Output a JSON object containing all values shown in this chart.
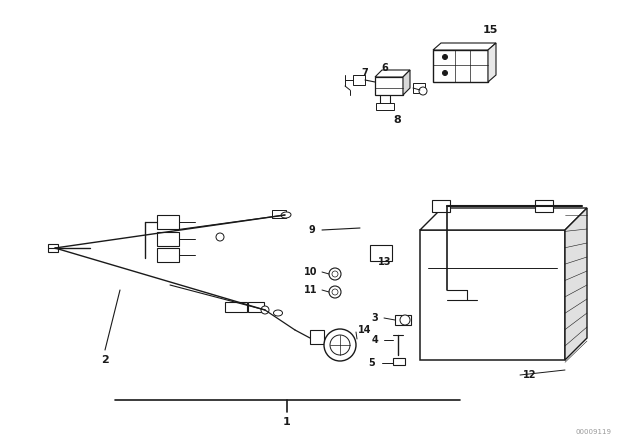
{
  "bg_color": "#ffffff",
  "line_color": "#1a1a1a",
  "fig_width": 6.4,
  "fig_height": 4.48,
  "dpi": 100
}
